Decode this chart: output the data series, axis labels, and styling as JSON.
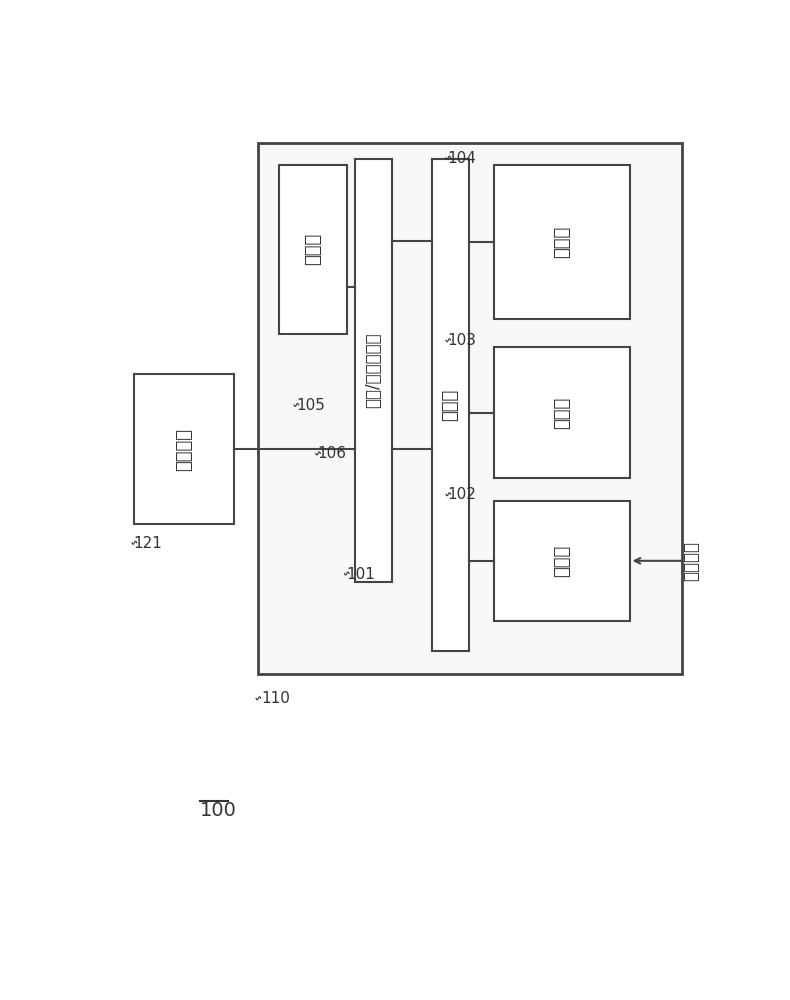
{
  "bg_color": "#ffffff",
  "box_color": "#ffffff",
  "box_edge": "#444444",
  "line_color": "#444444",
  "text_color": "#333333",
  "title_100": "100",
  "label_110": "110",
  "label_121": "121",
  "label_101": "101",
  "label_102": "102",
  "label_103": "103",
  "label_104": "104",
  "label_105": "105",
  "label_106": "106",
  "box_触摸面板": "触摸面板",
  "box_打印部": "打印部",
  "box_显示打印控制部": "显示/打印控制部",
  "box_运算部": "运算部",
  "box_输入键": "输入键",
  "box_存储部": "存储部",
  "box_测定部": "测定部",
  "text_自电极部": "自电极部",
  "font_size_label": 11,
  "font_size_box": 13,
  "font_size_small": 10
}
